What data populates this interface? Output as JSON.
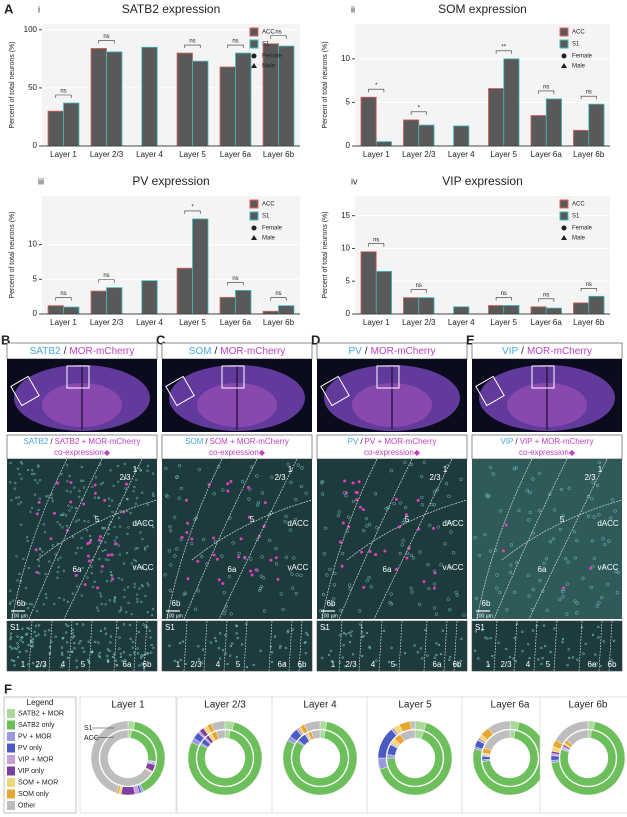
{
  "letters": {
    "A": "A",
    "F": "F"
  },
  "chart_data": [
    {
      "type": "bar",
      "panel": "i",
      "title": "SATB2 expression",
      "ylabel": "Percent of total neurons (%)",
      "categories": [
        "Layer 1",
        "Layer 2/3",
        "Layer 4",
        "Layer 5",
        "Layer 6a",
        "Layer 6b"
      ],
      "series": [
        {
          "name": "ACC",
          "color": "#e8615a",
          "values": [
            30,
            84,
            null,
            80,
            68,
            88
          ]
        },
        {
          "name": "S1",
          "color": "#3bbfbf",
          "values": [
            37,
            81,
            85,
            73,
            80,
            86
          ]
        }
      ],
      "significance": [
        "ns",
        "ns",
        null,
        "ns",
        "ns",
        "ns"
      ],
      "markers": [
        "Female",
        "Male"
      ],
      "ylim": [
        0,
        105
      ],
      "yticks": [
        0,
        50,
        100
      ]
    },
    {
      "type": "bar",
      "panel": "ii",
      "title": "SOM expression",
      "ylabel": "Percent of total neurons (%)",
      "categories": [
        "Layer 1",
        "Layer 2/3",
        "Layer 4",
        "Layer 5",
        "Layer 6a",
        "Layer 6b"
      ],
      "series": [
        {
          "name": "ACC",
          "color": "#e8615a",
          "values": [
            5.6,
            3.0,
            null,
            6.6,
            3.5,
            1.8
          ]
        },
        {
          "name": "S1",
          "color": "#3bbfbf",
          "values": [
            0.5,
            2.4,
            2.3,
            10.0,
            5.4,
            4.8
          ]
        }
      ],
      "significance": [
        "*",
        "*",
        null,
        "**",
        "ns",
        "ns"
      ],
      "markers": [
        "Female",
        "Male"
      ],
      "ylim": [
        0,
        14
      ],
      "yticks": [
        0,
        5,
        10
      ]
    },
    {
      "type": "bar",
      "panel": "iii",
      "title": "PV expression",
      "ylabel": "Percent of total neurons (%)",
      "categories": [
        "Layer 1",
        "Layer 2/3",
        "Layer 4",
        "Layer 5",
        "Layer 6a",
        "Layer 6b"
      ],
      "series": [
        {
          "name": "ACC",
          "color": "#e8615a",
          "values": [
            1.2,
            3.3,
            null,
            6.6,
            2.4,
            0.4
          ]
        },
        {
          "name": "S1",
          "color": "#3bbfbf",
          "values": [
            1.0,
            3.8,
            4.8,
            13.7,
            3.4,
            1.2
          ]
        }
      ],
      "significance": [
        "ns",
        "ns",
        null,
        "*",
        "ns",
        "ns"
      ],
      "markers": [
        "Female",
        "Male"
      ],
      "ylim": [
        0,
        17
      ],
      "yticks": [
        0,
        5,
        10
      ]
    },
    {
      "type": "bar",
      "panel": "iv",
      "title": "VIP expression",
      "ylabel": "Percent of total neurons (%)",
      "categories": [
        "Layer 1",
        "Layer 2/3",
        "Layer 4",
        "Layer 5",
        "Layer 6a",
        "Layer 6b"
      ],
      "series": [
        {
          "name": "ACC",
          "color": "#e8615a",
          "values": [
            9.5,
            2.5,
            null,
            1.3,
            1.1,
            1.7
          ]
        },
        {
          "name": "S1",
          "color": "#3bbfbf",
          "values": [
            6.5,
            2.5,
            1.1,
            1.3,
            0.9,
            2.7
          ]
        }
      ],
      "significance": [
        "ns",
        "ns",
        null,
        "ns",
        "ns",
        "ns"
      ],
      "markers": [
        "Female",
        "Male"
      ],
      "ylim": [
        0,
        18
      ],
      "yticks": [
        0,
        5,
        10,
        15
      ]
    },
    {
      "type": "donut",
      "title": "Layer 1",
      "ring_names": [
        "S1",
        "ACC"
      ],
      "rings": [
        [
          3,
          40,
          1,
          1,
          2,
          6,
          1,
          1,
          45
        ],
        [
          2,
          25,
          0.5,
          0.5,
          1,
          4,
          0.5,
          0.5,
          66
        ]
      ]
    },
    {
      "type": "donut",
      "title": "Layer 2/3",
      "rings": [
        [
          4,
          78,
          2,
          3,
          1,
          2,
          2,
          2,
          6
        ],
        [
          3,
          80,
          1,
          3,
          1,
          2,
          2,
          3,
          5
        ]
      ]
    },
    {
      "type": "donut",
      "title": "Layer 4",
      "rings": [
        [
          3,
          80,
          2,
          4,
          0.5,
          0.5,
          1,
          2,
          7
        ],
        [
          3,
          82,
          1,
          5,
          0.5,
          0.5,
          1,
          2,
          5
        ]
      ]
    },
    {
      "type": "donut",
      "title": "Layer 5",
      "rings": [
        [
          5,
          65,
          5,
          14,
          0.5,
          0.5,
          3,
          5,
          2
        ],
        [
          5,
          70,
          2,
          6,
          0.5,
          0.5,
          3,
          4,
          9
        ]
      ]
    },
    {
      "type": "donut",
      "title": "Layer 6a",
      "rings": [
        [
          4,
          75,
          1,
          3,
          0.5,
          0.5,
          2,
          4,
          10
        ],
        [
          3,
          70,
          1,
          2,
          0.5,
          0.5,
          1,
          3,
          19
        ]
      ]
    },
    {
      "type": "donut",
      "title": "Layer 6b",
      "rings": [
        [
          3,
          70,
          1,
          2,
          1,
          1,
          2,
          3,
          17
        ],
        [
          2,
          78,
          0.5,
          0.5,
          1,
          1,
          1,
          2,
          14
        ]
      ]
    }
  ],
  "legend": {
    "title": "Legend",
    "items": [
      {
        "name": "SATB2 + MOR",
        "color": "#a9d99b"
      },
      {
        "name": "SATB2 only",
        "color": "#6cbf5a"
      },
      {
        "name": "PV + MOR",
        "color": "#9a9ae0"
      },
      {
        "name": "PV only",
        "color": "#4a5bc4"
      },
      {
        "name": "VIP + MOR",
        "color": "#c99ddc"
      },
      {
        "name": "VIP only",
        "color": "#7a3fa0"
      },
      {
        "name": "SOM + MOR",
        "color": "#f2d77a"
      },
      {
        "name": "SOM only",
        "color": "#e8a530"
      },
      {
        "name": "Other",
        "color": "#bdbdbd"
      }
    ]
  },
  "panels": [
    {
      "letter": "B",
      "marker": "SATB2",
      "sep": "/",
      "reporter": "MOR-mCherry",
      "zoom": [
        "SATB2",
        "/",
        "SATB2 + MOR-mCherry",
        "co-expression◆"
      ]
    },
    {
      "letter": "C",
      "marker": "SOM",
      "sep": "/",
      "reporter": "MOR-mCherry",
      "zoom": [
        "SOM",
        "/",
        "SOM + MOR-mCherry",
        "co-expression◆"
      ]
    },
    {
      "letter": "D",
      "marker": "PV",
      "sep": "/",
      "reporter": "MOR-mCherry",
      "zoom": [
        "PV",
        "/",
        "PV + MOR-mCherry",
        "co-expression◆"
      ]
    },
    {
      "letter": "E",
      "marker": "VIP",
      "sep": "/",
      "reporter": "MOR-mCherry",
      "zoom": [
        "VIP",
        "/",
        "VIP + MOR-mCherry",
        "co-expression◆"
      ]
    }
  ],
  "regions": [
    "1",
    "2/3",
    "5",
    "dACC",
    "6a",
    "vACC",
    "6b"
  ],
  "scale": "100 µm",
  "s1": {
    "name": "S1",
    "layers": [
      "1",
      "2/3",
      "4",
      "5",
      "6a",
      "6b"
    ]
  }
}
